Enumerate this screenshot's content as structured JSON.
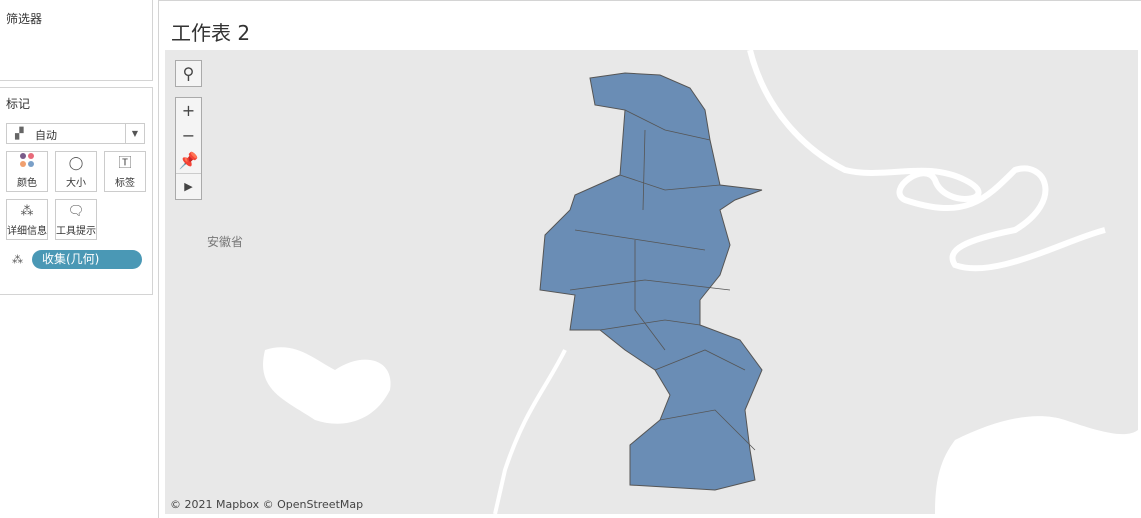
{
  "filters": {
    "title": "筛选器"
  },
  "marks": {
    "title": "标记",
    "type": "自动",
    "cards": [
      {
        "label": "颜色",
        "icon": "color-icon"
      },
      {
        "label": "大小",
        "icon": "size-icon"
      },
      {
        "label": "标签",
        "icon": "label-icon"
      },
      {
        "label": "详细信息",
        "icon": "detail-icon"
      },
      {
        "label": "工具提示",
        "icon": "tooltip-icon"
      }
    ],
    "pill": "收集(几何)"
  },
  "sheet": {
    "title": "工作表 2"
  },
  "map": {
    "place_label": "安徽省",
    "attribution": "© 2021 Mapbox © OpenStreetMap",
    "region_color": "#6a8db5",
    "background": "#e8e8e8"
  }
}
